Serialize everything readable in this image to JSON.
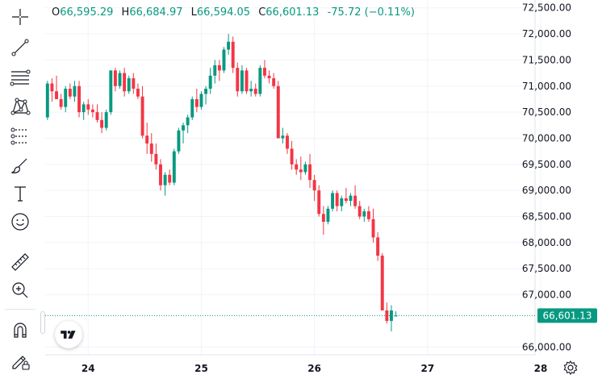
{
  "ohlc": {
    "open_label": "O",
    "open": "66,595.29",
    "high_label": "H",
    "high": "66,684.97",
    "low_label": "L",
    "low": "66,594.05",
    "close_label": "C",
    "close": "66,601.13",
    "change": "-75.72 (−0.11%)"
  },
  "price_label": "66,601.13",
  "colors": {
    "up": "#089981",
    "down": "#f23645",
    "grid": "#f0f3fa",
    "axis_text": "#131722"
  },
  "toolbar": {
    "tools": [
      "crosshair-icon",
      "trend-line-icon",
      "fib-retracement-icon",
      "xabcd-pattern-icon",
      "forecast-icon",
      "brush-icon",
      "text-icon",
      "emoji-icon",
      "ruler-icon",
      "zoom-in-icon",
      "magnet-icon",
      "lock-pencil-icon"
    ]
  },
  "chart_data": {
    "type": "candlestick",
    "y_ticks": [
      "72,500.00",
      "72,000.00",
      "71,500.00",
      "71,000.00",
      "70,500.00",
      "70,000.00",
      "69,500.00",
      "69,000.00",
      "68,500.00",
      "68,000.00",
      "67,500.00",
      "67,000.00",
      "66,000.00"
    ],
    "x_ticks": [
      "24",
      "25",
      "26",
      "27",
      "28"
    ],
    "ylim": [
      65850,
      72650
    ],
    "xlim": [
      23.62,
      27.95
    ],
    "current_price": 66601.13,
    "candles": [
      [
        23.64,
        70400,
        71100,
        70350,
        71050
      ],
      [
        23.68,
        71050,
        71150,
        70700,
        70900
      ],
      [
        23.72,
        70900,
        71200,
        70750,
        70750
      ],
      [
        23.76,
        70750,
        70850,
        70550,
        70600
      ],
      [
        23.8,
        70600,
        71000,
        70500,
        70950
      ],
      [
        23.84,
        70950,
        71050,
        70750,
        70800
      ],
      [
        23.88,
        70800,
        71100,
        70700,
        71000
      ],
      [
        23.92,
        71000,
        71100,
        70400,
        70500
      ],
      [
        23.96,
        70500,
        70700,
        70350,
        70650
      ],
      [
        24.0,
        70650,
        70750,
        70450,
        70550
      ],
      [
        24.04,
        70550,
        70650,
        70400,
        70500
      ],
      [
        24.08,
        70500,
        70650,
        70300,
        70350
      ],
      [
        24.12,
        70350,
        70500,
        70100,
        70200
      ],
      [
        24.16,
        70200,
        70550,
        70150,
        70500
      ],
      [
        24.2,
        70500,
        71300,
        70450,
        71300
      ],
      [
        24.24,
        71300,
        71350,
        70900,
        71000
      ],
      [
        24.28,
        71000,
        71300,
        70950,
        71250
      ],
      [
        24.32,
        71250,
        71350,
        70800,
        70900
      ],
      [
        24.36,
        70900,
        71200,
        70850,
        71150
      ],
      [
        24.4,
        71150,
        71250,
        70850,
        70950
      ],
      [
        24.44,
        70950,
        71050,
        70750,
        70800
      ],
      [
        24.48,
        70800,
        71000,
        70000,
        70050
      ],
      [
        24.52,
        70050,
        70300,
        69700,
        69900
      ],
      [
        24.56,
        69900,
        70100,
        69550,
        69700
      ],
      [
        24.6,
        69700,
        69900,
        69400,
        69500
      ],
      [
        24.64,
        69500,
        69600,
        69000,
        69100
      ],
      [
        24.68,
        69100,
        69350,
        68900,
        69300
      ],
      [
        24.72,
        69300,
        69400,
        69100,
        69150
      ],
      [
        24.76,
        69150,
        69800,
        69100,
        69750
      ],
      [
        24.8,
        69750,
        70200,
        69700,
        70150
      ],
      [
        24.84,
        70150,
        70300,
        69900,
        70250
      ],
      [
        24.88,
        70250,
        70450,
        70100,
        70400
      ],
      [
        24.92,
        70400,
        70800,
        70350,
        70750
      ],
      [
        24.96,
        70750,
        70950,
        70500,
        70600
      ],
      [
        25.0,
        70600,
        70900,
        70550,
        70850
      ],
      [
        25.04,
        70850,
        71000,
        70650,
        70950
      ],
      [
        25.08,
        70950,
        71350,
        70850,
        71200
      ],
      [
        25.12,
        71200,
        71500,
        71050,
        71400
      ],
      [
        25.16,
        71400,
        71500,
        71100,
        71300
      ],
      [
        25.2,
        71300,
        71750,
        71250,
        71700
      ],
      [
        25.24,
        71700,
        72000,
        71600,
        71850
      ],
      [
        25.28,
        71850,
        71950,
        71250,
        71350
      ],
      [
        25.32,
        71350,
        71450,
        70800,
        70900
      ],
      [
        25.36,
        70900,
        71400,
        70850,
        71300
      ],
      [
        25.4,
        71300,
        71350,
        70850,
        70900
      ],
      [
        25.44,
        70900,
        71100,
        70800,
        70950
      ],
      [
        25.48,
        70950,
        71050,
        70800,
        70850
      ],
      [
        25.52,
        70850,
        71400,
        70800,
        71350
      ],
      [
        25.56,
        71350,
        71500,
        71150,
        71200
      ],
      [
        25.6,
        71200,
        71300,
        71050,
        71150
      ],
      [
        25.64,
        71150,
        71250,
        70950,
        71000
      ],
      [
        25.68,
        71000,
        71100,
        70000,
        70000
      ],
      [
        25.72,
        70000,
        70200,
        69900,
        70050
      ],
      [
        25.76,
        70050,
        70100,
        69700,
        69800
      ],
      [
        25.8,
        69800,
        69950,
        69400,
        69500
      ],
      [
        25.84,
        69500,
        69600,
        69300,
        69400
      ],
      [
        25.88,
        69400,
        69650,
        69200,
        69350
      ],
      [
        25.92,
        69350,
        69550,
        69300,
        69500
      ],
      [
        25.96,
        69500,
        69700,
        69050,
        69200
      ],
      [
        26.0,
        69200,
        69300,
        68800,
        69000
      ],
      [
        26.04,
        69000,
        69100,
        68500,
        68550
      ],
      [
        26.08,
        68550,
        68700,
        68150,
        68400
      ],
      [
        26.12,
        68400,
        68700,
        68350,
        68650
      ],
      [
        26.16,
        68650,
        69000,
        68600,
        68950
      ],
      [
        26.2,
        68950,
        69000,
        68600,
        68700
      ],
      [
        26.24,
        68700,
        68900,
        68600,
        68850
      ],
      [
        26.28,
        68850,
        69050,
        68750,
        68800
      ],
      [
        26.32,
        68800,
        68950,
        68700,
        68900
      ],
      [
        26.36,
        68900,
        69100,
        68650,
        68700
      ],
      [
        26.4,
        68700,
        68800,
        68450,
        68500
      ],
      [
        26.44,
        68500,
        68650,
        68400,
        68600
      ],
      [
        26.48,
        68600,
        68700,
        68400,
        68450
      ],
      [
        26.52,
        68450,
        68650,
        68000,
        68100
      ],
      [
        26.56,
        68100,
        68200,
        67650,
        67750
      ],
      [
        26.6,
        67750,
        67800,
        66700,
        66700
      ],
      [
        26.64,
        66700,
        66850,
        66450,
        66500
      ],
      [
        26.68,
        66500,
        66800,
        66300,
        66700
      ],
      [
        26.72,
        66595.29,
        66684.97,
        66594.05,
        66601.13
      ]
    ]
  }
}
